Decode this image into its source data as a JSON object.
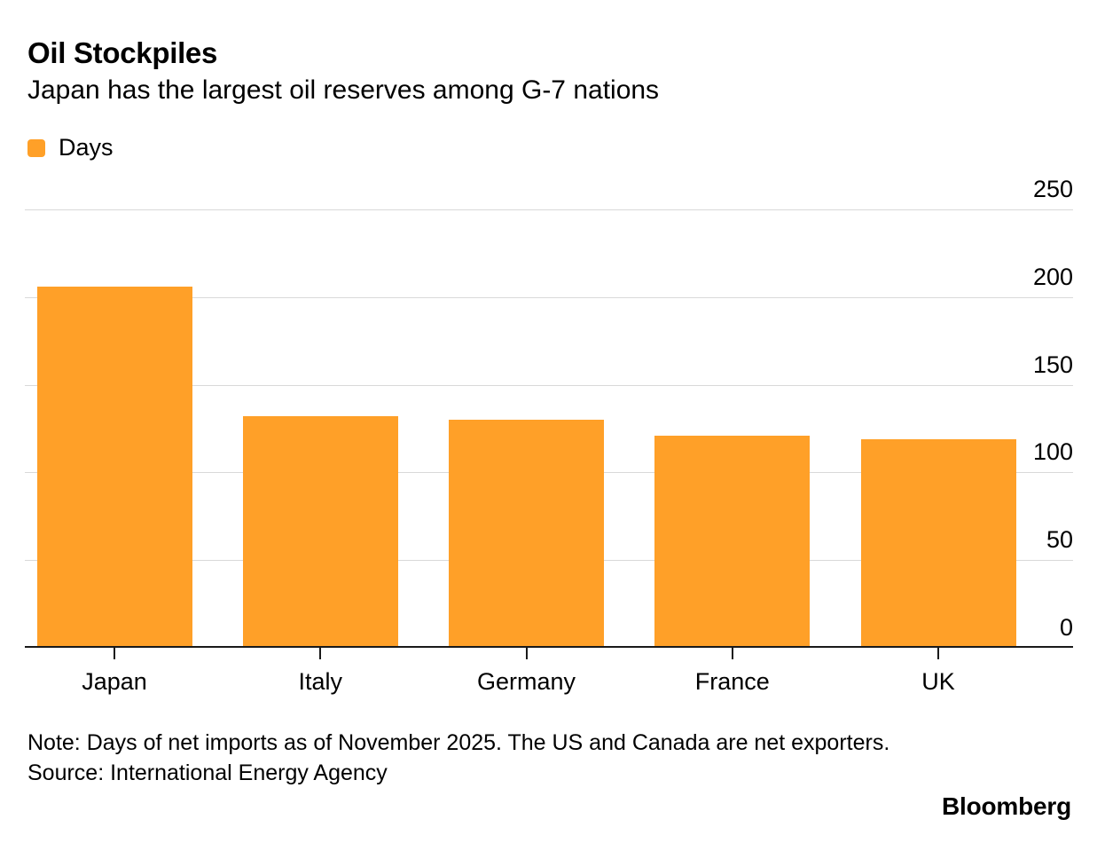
{
  "header": {
    "title": "Oil Stockpiles",
    "subtitle": "Japan has the largest oil reserves among G-7 nations"
  },
  "legend": {
    "label": "Days",
    "swatch_color": "#FFA028"
  },
  "chart_data": {
    "type": "bar",
    "categories": [
      "Japan",
      "Italy",
      "Germany",
      "France",
      "UK"
    ],
    "values": [
      206,
      132,
      130,
      121,
      119
    ],
    "series_name": "Days",
    "title": "Oil Stockpiles",
    "xlabel": "",
    "ylabel": "Days",
    "ylim": [
      0,
      250
    ],
    "yticks": [
      0,
      50,
      100,
      150,
      200,
      250
    ],
    "y_axis_side": "right",
    "grid": true,
    "legend_position": "top-left",
    "bar_color": "#FFA028",
    "gridline_color": "#d9d9d9",
    "axis_color": "#1a1a1a"
  },
  "footer": {
    "note": "Note: Days of net imports as of November 2025. The US and Canada are net exporters.",
    "source": "Source: International Energy Agency",
    "brand": "Bloomberg"
  }
}
